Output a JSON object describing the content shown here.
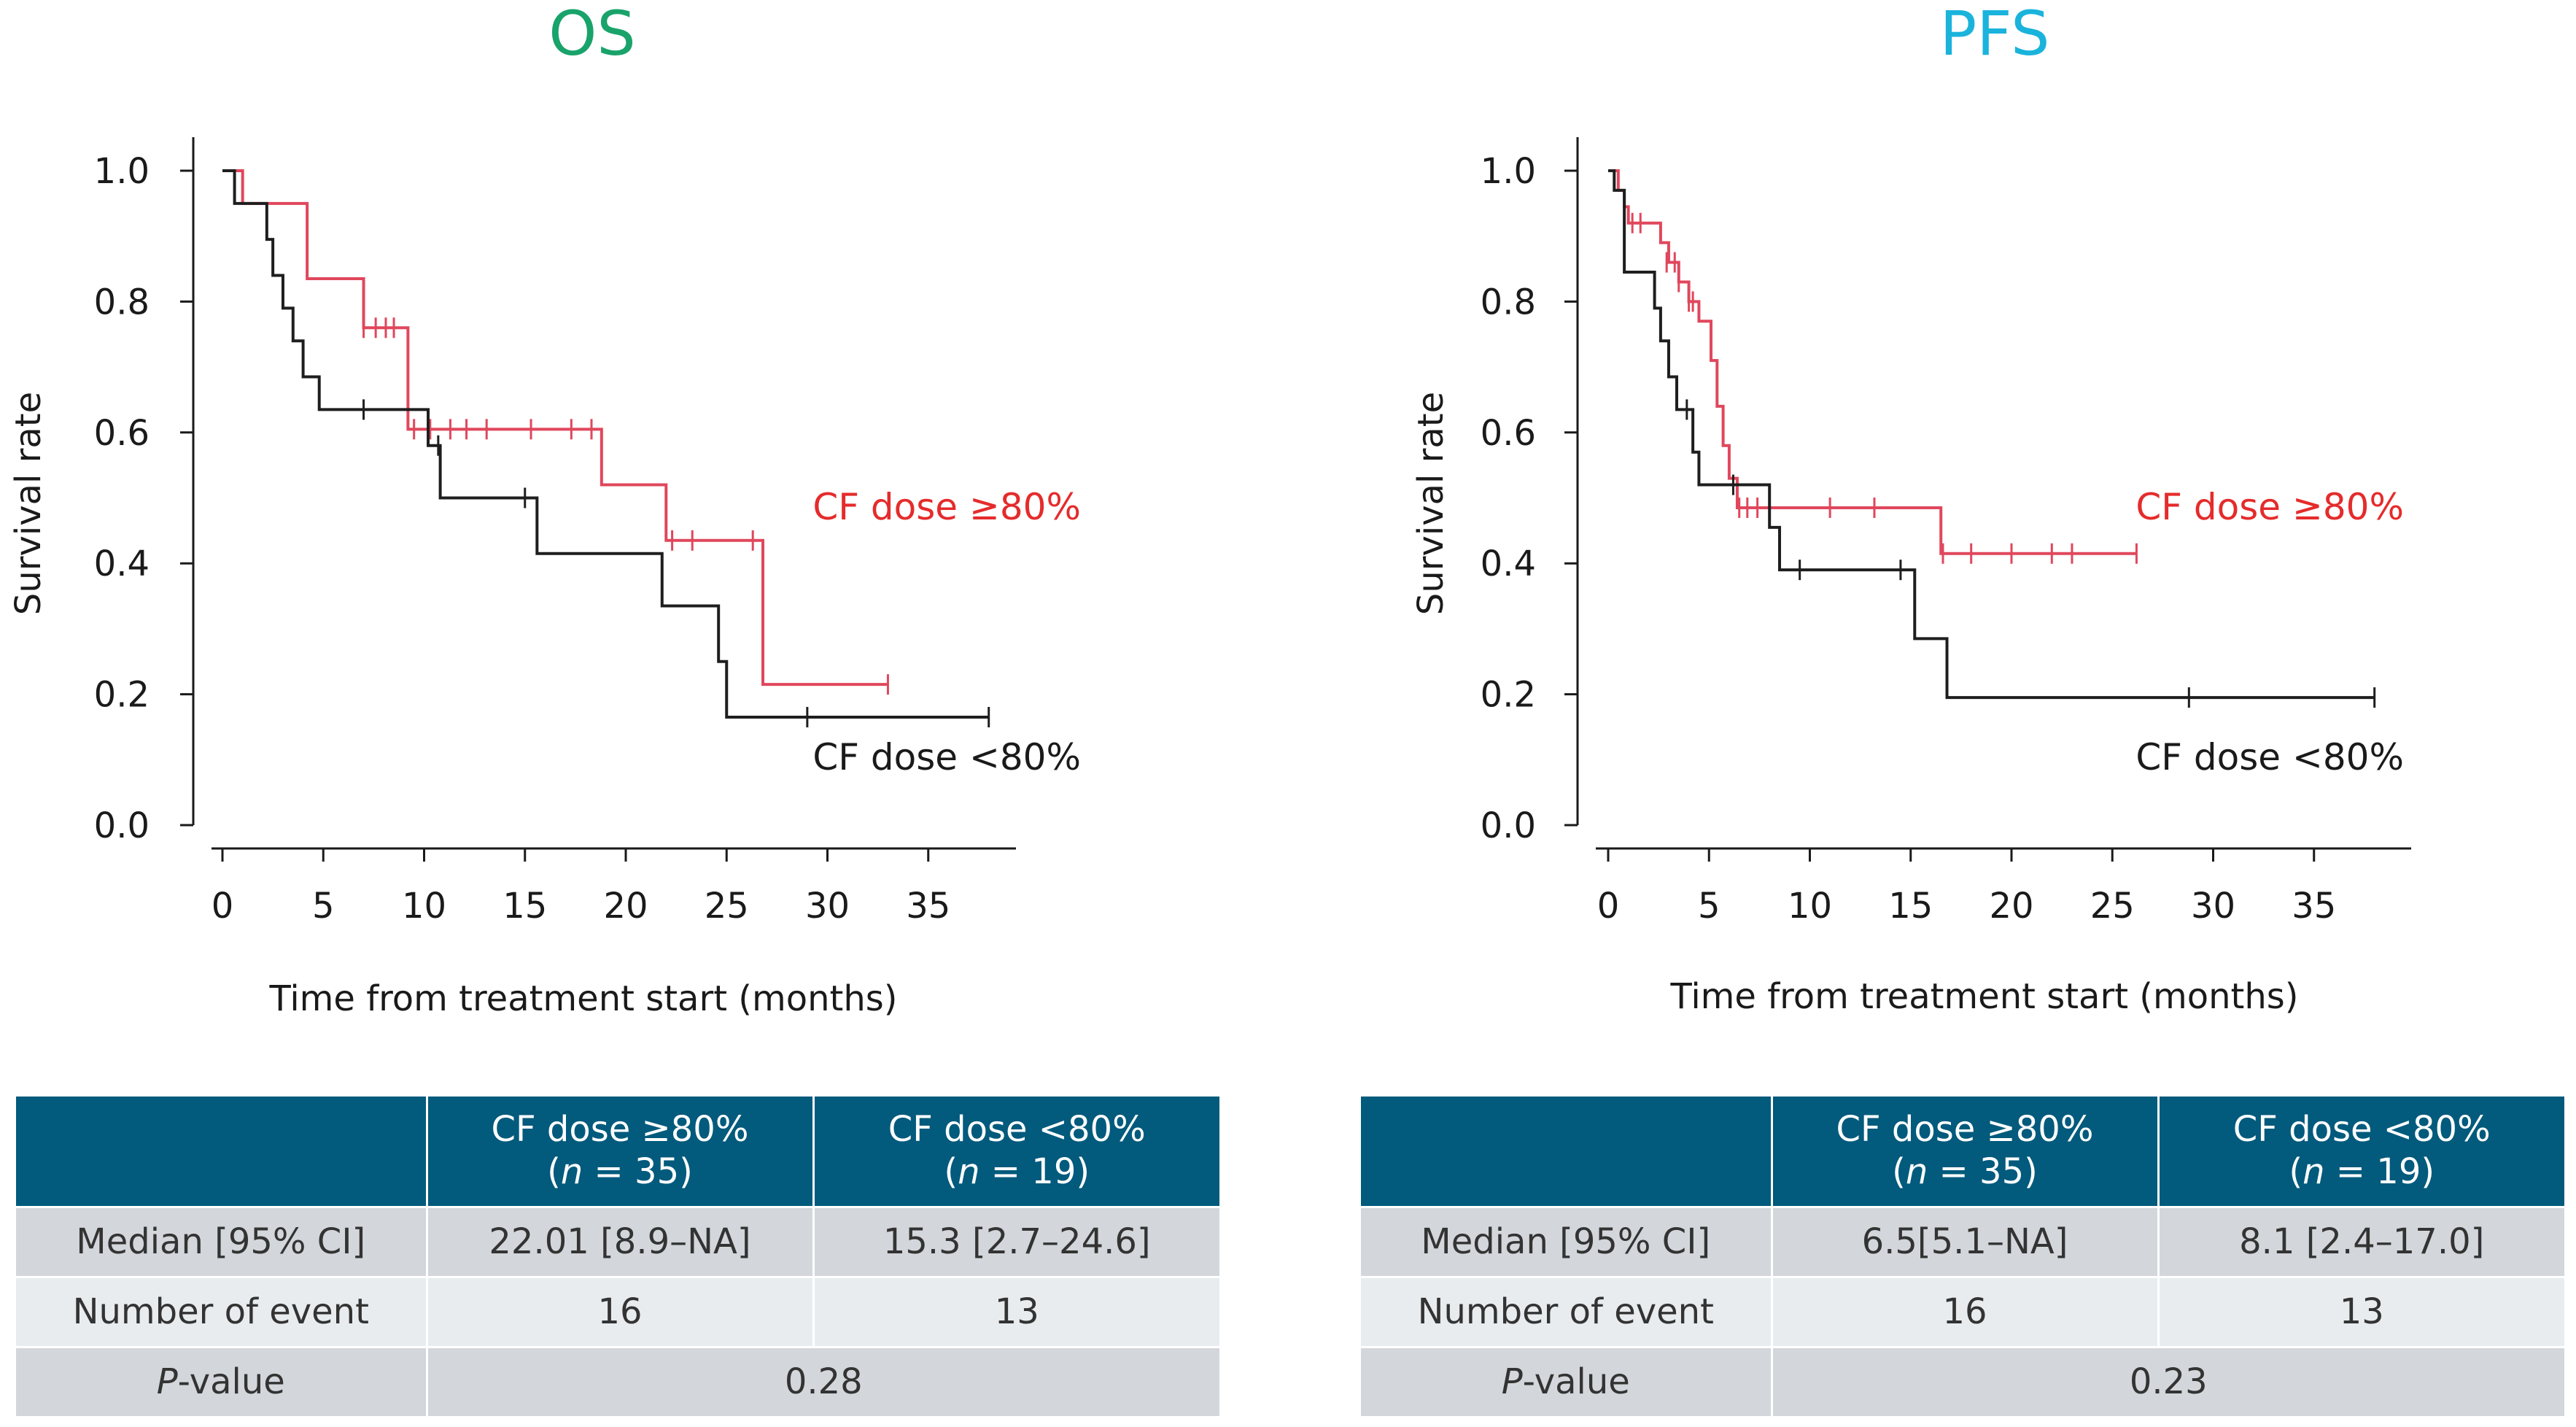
{
  "colors": {
    "os_title": "#19a36b",
    "pfs_title": "#1ab3dc",
    "red_curve": "#e0475c",
    "red_label": "#e52b2b",
    "black_curve": "#1e1e1e",
    "table_header": "#025a7c"
  },
  "panels": [
    {
      "key": "os",
      "title": "OS",
      "xlabel": "Time from treatment start  (months)",
      "ylabel": "Survival rate",
      "label_high": "CF dose ≥80%",
      "label_low": "CF dose <80%",
      "table": {
        "header_high": [
          "CF dose ≥80%",
          "(n = 35)"
        ],
        "header_low": [
          "CF dose <80%",
          "(n = 19)"
        ],
        "median_label": "Median [95% CI]",
        "median_high": "22.01 [8.9–NA]",
        "median_low": "15.3 [2.7–24.6]",
        "events_label": "Number of event",
        "events_high": "16",
        "events_low": "13",
        "p_prefix": "P",
        "p_suffix": "-value",
        "p_value": "0.28"
      }
    },
    {
      "key": "pfs",
      "title": "PFS",
      "xlabel": "Time from treatment start (months)",
      "ylabel": "Survival rate",
      "label_high": "CF dose ≥80%",
      "label_low": "CF dose <80%",
      "table": {
        "header_high": [
          "CF dose ≥80%",
          "(n = 35)"
        ],
        "header_low": [
          "CF dose <80%",
          "(n = 19)"
        ],
        "median_label": "Median [95% CI]",
        "median_high": "6.5[5.1–NA]",
        "median_low": "8.1 [2.4–17.0]",
        "events_label": "Number of event",
        "events_high": "16",
        "events_low": "13",
        "p_prefix": "P",
        "p_suffix": "-value",
        "p_value": "0.23"
      }
    }
  ],
  "chart_data": [
    {
      "type": "line",
      "subtype": "kaplan-meier step",
      "title": "OS",
      "xlabel": "Time from treatment start  (months)",
      "ylabel": "Survival rate",
      "xlim": [
        0,
        38
      ],
      "ylim": [
        0,
        1.0
      ],
      "xticks": [
        0,
        5,
        10,
        15,
        20,
        25,
        30,
        35
      ],
      "yticks": [
        0.0,
        0.2,
        0.4,
        0.6,
        0.8,
        1.0
      ],
      "ytick_labels": [
        "0.0",
        "0.2",
        "0.4",
        "0.6",
        "0.8",
        "1.0"
      ],
      "series": [
        {
          "name": "CF dose ≥80%",
          "color": "#e0475c",
          "steps": [
            [
              0,
              1.0
            ],
            [
              1.0,
              0.95
            ],
            [
              4.2,
              0.835
            ],
            [
              7.0,
              0.76
            ],
            [
              9.2,
              0.605
            ],
            [
              18.8,
              0.52
            ],
            [
              22.0,
              0.435
            ],
            [
              26.8,
              0.215
            ],
            [
              33.0,
              0.215
            ]
          ],
          "censored": [
            [
              7.0,
              0.76
            ],
            [
              7.6,
              0.76
            ],
            [
              8.1,
              0.76
            ],
            [
              8.5,
              0.76
            ],
            [
              9.5,
              0.605
            ],
            [
              10.3,
              0.605
            ],
            [
              11.3,
              0.605
            ],
            [
              12.1,
              0.605
            ],
            [
              13.1,
              0.605
            ],
            [
              15.3,
              0.605
            ],
            [
              17.3,
              0.605
            ],
            [
              18.3,
              0.605
            ],
            [
              22.3,
              0.435
            ],
            [
              23.3,
              0.435
            ],
            [
              26.3,
              0.435
            ],
            [
              33.0,
              0.215
            ]
          ]
        },
        {
          "name": "CF dose <80%",
          "color": "#1e1e1e",
          "steps": [
            [
              0,
              1.0
            ],
            [
              0.6,
              0.95
            ],
            [
              2.2,
              0.895
            ],
            [
              2.5,
              0.84
            ],
            [
              3.0,
              0.79
            ],
            [
              3.5,
              0.74
            ],
            [
              4.0,
              0.685
            ],
            [
              4.8,
              0.635
            ],
            [
              10.2,
              0.58
            ],
            [
              10.8,
              0.5
            ],
            [
              15.6,
              0.415
            ],
            [
              21.8,
              0.335
            ],
            [
              24.6,
              0.25
            ],
            [
              25.0,
              0.165
            ],
            [
              38.0,
              0.165
            ]
          ],
          "censored": [
            [
              7.0,
              0.635
            ],
            [
              10.7,
              0.58
            ],
            [
              15.0,
              0.5
            ],
            [
              29.0,
              0.165
            ],
            [
              38.0,
              0.165
            ]
          ]
        }
      ]
    },
    {
      "type": "line",
      "subtype": "kaplan-meier step",
      "title": "PFS",
      "xlabel": "Time from treatment start (months)",
      "ylabel": "Survival rate",
      "xlim": [
        0,
        38
      ],
      "ylim": [
        0,
        1.0
      ],
      "xticks": [
        0,
        5,
        10,
        15,
        20,
        25,
        30,
        35
      ],
      "yticks": [
        0.0,
        0.2,
        0.4,
        0.6,
        0.8,
        1.0
      ],
      "ytick_labels": [
        "0.0",
        "0.2",
        "0.4",
        "0.6",
        "0.8",
        "1.0"
      ],
      "series": [
        {
          "name": "CF dose ≥80%",
          "color": "#e0475c",
          "steps": [
            [
              0,
              1.0
            ],
            [
              0.5,
              0.97
            ],
            [
              0.8,
              0.945
            ],
            [
              1.0,
              0.92
            ],
            [
              2.6,
              0.89
            ],
            [
              3.0,
              0.86
            ],
            [
              3.5,
              0.83
            ],
            [
              4.0,
              0.8
            ],
            [
              4.5,
              0.77
            ],
            [
              5.1,
              0.71
            ],
            [
              5.4,
              0.64
            ],
            [
              5.7,
              0.58
            ],
            [
              6.0,
              0.53
            ],
            [
              6.4,
              0.485
            ],
            [
              16.5,
              0.415
            ],
            [
              26.2,
              0.415
            ]
          ],
          "censored": [
            [
              0.8,
              0.945
            ],
            [
              1.2,
              0.92
            ],
            [
              1.6,
              0.92
            ],
            [
              2.9,
              0.86
            ],
            [
              3.3,
              0.86
            ],
            [
              3.5,
              0.83
            ],
            [
              4.0,
              0.8
            ],
            [
              4.2,
              0.8
            ],
            [
              6.5,
              0.485
            ],
            [
              6.9,
              0.485
            ],
            [
              7.4,
              0.485
            ],
            [
              11.0,
              0.485
            ],
            [
              13.2,
              0.485
            ],
            [
              16.6,
              0.415
            ],
            [
              18.0,
              0.415
            ],
            [
              20.0,
              0.415
            ],
            [
              22.0,
              0.415
            ],
            [
              23.0,
              0.415
            ],
            [
              26.2,
              0.415
            ]
          ]
        },
        {
          "name": "CF dose <80%",
          "color": "#1e1e1e",
          "steps": [
            [
              0,
              1.0
            ],
            [
              0.3,
              0.97
            ],
            [
              0.8,
              0.845
            ],
            [
              2.3,
              0.79
            ],
            [
              2.6,
              0.74
            ],
            [
              3.0,
              0.685
            ],
            [
              3.4,
              0.635
            ],
            [
              4.2,
              0.57
            ],
            [
              4.5,
              0.52
            ],
            [
              8.0,
              0.455
            ],
            [
              8.5,
              0.39
            ],
            [
              15.2,
              0.285
            ],
            [
              16.8,
              0.195
            ],
            [
              38.0,
              0.195
            ]
          ],
          "censored": [
            [
              3.9,
              0.635
            ],
            [
              6.2,
              0.52
            ],
            [
              9.5,
              0.39
            ],
            [
              14.5,
              0.39
            ],
            [
              28.8,
              0.195
            ],
            [
              38.0,
              0.195
            ]
          ]
        }
      ]
    }
  ]
}
